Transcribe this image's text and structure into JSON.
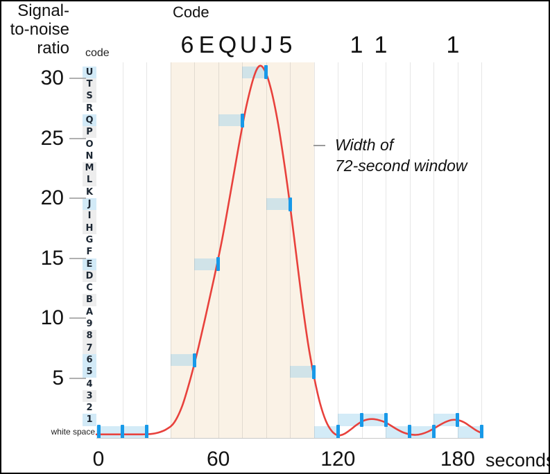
{
  "header": {
    "title": "Code",
    "big_codes": [
      {
        "char": "6",
        "x": 268
      },
      {
        "char": "E",
        "x": 296
      },
      {
        "char": "Q",
        "x": 326
      },
      {
        "char": "U",
        "x": 356
      },
      {
        "char": "J",
        "x": 383
      },
      {
        "char": "5",
        "x": 410
      },
      {
        "char": "1",
        "x": 512
      },
      {
        "char": "1",
        "x": 547
      },
      {
        "char": "1",
        "x": 651
      }
    ]
  },
  "y_axis": {
    "title_lines": [
      "Signal-",
      "to-noise",
      "ratio"
    ],
    "column_header": "code",
    "ticks": [
      30,
      25,
      20,
      15,
      10,
      5
    ]
  },
  "x_axis": {
    "ticks": [
      0,
      60,
      120,
      180
    ],
    "unit": "seconds"
  },
  "annotation": {
    "lines": [
      "Width of",
      "72-second window"
    ]
  },
  "code_column": [
    {
      "code": "U",
      "row": 30,
      "bg": "blue"
    },
    {
      "code": "T",
      "row": 29,
      "bg": "gray"
    },
    {
      "code": "S",
      "row": 28,
      "bg": "gray"
    },
    {
      "code": "R",
      "row": 27,
      "bg": "none"
    },
    {
      "code": "Q",
      "row": 26,
      "bg": "blue"
    },
    {
      "code": "P",
      "row": 25,
      "bg": "gray"
    },
    {
      "code": "O",
      "row": 24,
      "bg": "none"
    },
    {
      "code": "N",
      "row": 23,
      "bg": "none"
    },
    {
      "code": "M",
      "row": 22,
      "bg": "gray"
    },
    {
      "code": "L",
      "row": 21,
      "bg": "gray"
    },
    {
      "code": "K",
      "row": 20,
      "bg": "none"
    },
    {
      "code": "J",
      "row": 19,
      "bg": "blue"
    },
    {
      "code": "I",
      "row": 18,
      "bg": "gray"
    },
    {
      "code": "H",
      "row": 17,
      "bg": "gray"
    },
    {
      "code": "G",
      "row": 16,
      "bg": "none"
    },
    {
      "code": "F",
      "row": 15,
      "bg": "none"
    },
    {
      "code": "E",
      "row": 14,
      "bg": "blue"
    },
    {
      "code": "D",
      "row": 13,
      "bg": "gray"
    },
    {
      "code": "C",
      "row": 12,
      "bg": "none"
    },
    {
      "code": "B",
      "row": 11,
      "bg": "gray"
    },
    {
      "code": "A",
      "row": 10,
      "bg": "none"
    },
    {
      "code": "9",
      "row": 9,
      "bg": "none"
    },
    {
      "code": "8",
      "row": 8,
      "bg": "gray"
    },
    {
      "code": "7",
      "row": 7,
      "bg": "gray"
    },
    {
      "code": "6",
      "row": 6,
      "bg": "blue"
    },
    {
      "code": "5",
      "row": 5,
      "bg": "blue"
    },
    {
      "code": "4",
      "row": 4,
      "bg": "none"
    },
    {
      "code": "3",
      "row": 3,
      "bg": "gray"
    },
    {
      "code": "2",
      "row": 2,
      "bg": "none"
    },
    {
      "code": "1",
      "row": 1,
      "bg": "blue"
    },
    {
      "code": "white space",
      "row": 0,
      "bg": "none"
    }
  ],
  "chart_data": {
    "type": "line",
    "title": "Code",
    "xlabel": "seconds",
    "ylabel": "Signal-to-noise ratio",
    "x_ticks": [
      0,
      60,
      120,
      180
    ],
    "y_ticks": [
      5,
      10,
      15,
      20,
      25,
      30
    ],
    "x_range": [
      -1,
      193
    ],
    "y_range": [
      0,
      31.4
    ],
    "grid": true,
    "grid_interval_seconds": 12,
    "window_region": {
      "t_start": 36,
      "t_end": 108,
      "label": "Width of 72-second window"
    },
    "readings": [
      {
        "t": 0,
        "code": "white space",
        "row": 0
      },
      {
        "t": 12,
        "code": "white space",
        "row": 0
      },
      {
        "t": 24,
        "code": "white space",
        "row": 0
      },
      {
        "t": 48,
        "code": "6",
        "row": 6
      },
      {
        "t": 60,
        "code": "E",
        "row": 14
      },
      {
        "t": 72,
        "code": "Q",
        "row": 26
      },
      {
        "t": 84,
        "code": "U",
        "row": 30
      },
      {
        "t": 96,
        "code": "J",
        "row": 19
      },
      {
        "t": 108,
        "code": "5",
        "row": 5
      },
      {
        "t": 120,
        "code": "white space",
        "row": 0
      },
      {
        "t": 132,
        "code": "1",
        "row": 1
      },
      {
        "t": 144,
        "code": "1",
        "row": 1
      },
      {
        "t": 156,
        "code": "white space",
        "row": 0
      },
      {
        "t": 168,
        "code": "white space",
        "row": 0
      },
      {
        "t": 180,
        "code": "1",
        "row": 1
      },
      {
        "t": 192,
        "code": "white space",
        "row": 0
      }
    ],
    "curve_points": [
      [
        -1,
        0.3
      ],
      [
        4,
        0.3
      ],
      [
        10,
        0.3
      ],
      [
        16,
        0.3
      ],
      [
        22,
        0.3
      ],
      [
        26,
        0.33
      ],
      [
        30,
        0.45
      ],
      [
        34,
        0.72
      ],
      [
        38,
        1.3
      ],
      [
        42,
        2.7
      ],
      [
        46,
        4.9
      ],
      [
        50,
        7.5
      ],
      [
        54,
        10.4
      ],
      [
        58,
        13.4
      ],
      [
        62,
        16.6
      ],
      [
        66,
        20.3
      ],
      [
        70,
        24.1
      ],
      [
        74,
        27.6
      ],
      [
        78,
        30.2
      ],
      [
        81,
        31.05
      ],
      [
        84,
        30.4
      ],
      [
        87,
        28.7
      ],
      [
        90,
        26.2
      ],
      [
        93,
        23.0
      ],
      [
        96,
        19.4
      ],
      [
        99,
        15.4
      ],
      [
        102,
        11.4
      ],
      [
        105,
        7.9
      ],
      [
        108,
        5.1
      ],
      [
        111,
        2.9
      ],
      [
        114,
        1.4
      ],
      [
        117,
        0.55
      ],
      [
        120,
        0.22
      ],
      [
        123,
        0.33
      ],
      [
        126,
        0.66
      ],
      [
        129,
        1.05
      ],
      [
        132,
        1.38
      ],
      [
        135,
        1.55
      ],
      [
        138,
        1.57
      ],
      [
        141,
        1.47
      ],
      [
        144,
        1.28
      ],
      [
        147,
        0.98
      ],
      [
        150,
        0.68
      ],
      [
        153,
        0.44
      ],
      [
        156,
        0.3
      ],
      [
        159,
        0.26
      ],
      [
        162,
        0.34
      ],
      [
        165,
        0.52
      ],
      [
        168,
        0.78
      ],
      [
        171,
        1.08
      ],
      [
        174,
        1.34
      ],
      [
        177,
        1.5
      ],
      [
        180,
        1.49
      ],
      [
        183,
        1.32
      ],
      [
        186,
        1.0
      ],
      [
        189,
        0.66
      ],
      [
        192,
        0.4
      ]
    ],
    "colors": {
      "curve": "#e8413c",
      "marker": "#1899e8",
      "reading_band": "#d3e9f5",
      "window_fill": "#faf2e6",
      "code_highlight": "#d2eaf7"
    }
  }
}
